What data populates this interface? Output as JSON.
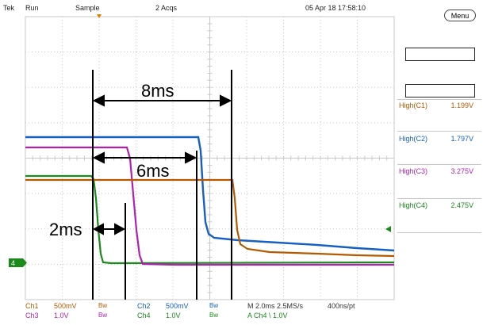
{
  "header": {
    "brand": "Tek",
    "state": "Run",
    "mode": "Sample",
    "acqs": "2 Acqs",
    "datetime": "05 Apr 18 17:58:10"
  },
  "menu_label": "Menu",
  "channel_marker": "4",
  "annotations": {
    "big": "8ms",
    "mid": "6ms",
    "small": "2ms"
  },
  "measurements": [
    {
      "source": "High(C1)",
      "value": "1.199V",
      "color": "#b35a00"
    },
    {
      "source": "High(C2)",
      "value": "1.797V",
      "color": "#1560c0"
    },
    {
      "source": "High(C3)",
      "value": "3.275V",
      "color": "#b020b0"
    },
    {
      "source": "High(C4)",
      "value": "2.475V",
      "color": "#1a8a1a"
    }
  ],
  "footer": {
    "ch1": "Ch1",
    "ch1_scale": "500mV",
    "ch1_bw": "Bw",
    "ch2": "Ch2",
    "ch2_scale": "500mV",
    "ch2_bw": "Bw",
    "ch3": "Ch3",
    "ch3_scale": "1.0V",
    "ch3_bw": "Bw",
    "ch4": "Ch4",
    "ch4_scale": "1.0V",
    "ch4_bw": "Bw",
    "timebase": "M 2.0ms 2.5MS/s",
    "record": "400ns/pt",
    "trigger": "A  Ch4  \\  1.0V"
  },
  "colors": {
    "ch1": "#b35a00",
    "ch2": "#1560c0",
    "ch3": "#b020b0",
    "ch4": "#1a8a1a",
    "grid": "#c8c8c8",
    "annotation": "#000000"
  }
}
